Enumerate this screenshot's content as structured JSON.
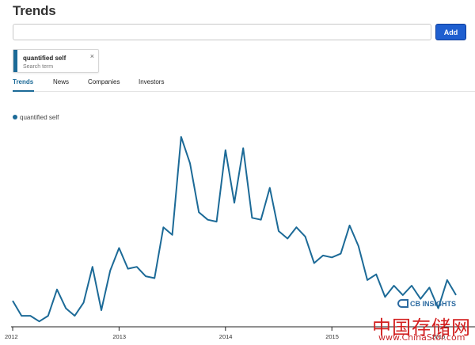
{
  "header": {
    "title": "Trends"
  },
  "search": {
    "value": "",
    "placeholder": "",
    "add_label": "Add"
  },
  "term_chip": {
    "term": "quantified self",
    "subtitle": "Search term",
    "close_icon": "×"
  },
  "tabs": [
    {
      "label": "Trends",
      "active": true
    },
    {
      "label": "News",
      "active": false
    },
    {
      "label": "Companies",
      "active": false
    },
    {
      "label": "Investors",
      "active": false
    }
  ],
  "colors": {
    "accent": "#1c6a97",
    "button": "#1f5fd0",
    "watermark_red": "#d32020"
  },
  "watermark": {
    "logo_text": "CB INSIGHTS",
    "cn_text": "中国存储网",
    "url": "www.ChinaStor.com"
  },
  "chart_data": {
    "type": "line",
    "title": "",
    "xlabel": "",
    "ylabel": "",
    "legend_position": "top-left",
    "grid": false,
    "x_ticks": [
      "2012",
      "2013",
      "2014",
      "2015",
      "2016"
    ],
    "ylim": [
      0,
      100
    ],
    "series": [
      {
        "name": "quantified self",
        "x": [
          "2012-01",
          "2012-02",
          "2012-03",
          "2012-04",
          "2012-05",
          "2012-06",
          "2012-07",
          "2012-08",
          "2012-09",
          "2012-10",
          "2012-11",
          "2012-12",
          "2013-01",
          "2013-02",
          "2013-03",
          "2013-04",
          "2013-05",
          "2013-06",
          "2013-07",
          "2013-08",
          "2013-09",
          "2013-10",
          "2013-11",
          "2013-12",
          "2014-01",
          "2014-02",
          "2014-03",
          "2014-04",
          "2014-05",
          "2014-06",
          "2014-07",
          "2014-08",
          "2014-09",
          "2014-10",
          "2014-11",
          "2014-12",
          "2015-01",
          "2015-02",
          "2015-03",
          "2015-04",
          "2015-05",
          "2015-06",
          "2015-07",
          "2015-08",
          "2015-09",
          "2015-10",
          "2015-11",
          "2015-12",
          "2016-01",
          "2016-02",
          "2016-03"
        ],
        "values": [
          13,
          5,
          5,
          2,
          5,
          19,
          9,
          5,
          12,
          31,
          8,
          29,
          41,
          30,
          31,
          26,
          25,
          52,
          48,
          100,
          86,
          60,
          56,
          55,
          93,
          65,
          94,
          57,
          56,
          73,
          50,
          46,
          52,
          47,
          33,
          37,
          36,
          38,
          53,
          42,
          24,
          27,
          15,
          21,
          16,
          21,
          14,
          20,
          9,
          24,
          16
        ]
      }
    ]
  }
}
